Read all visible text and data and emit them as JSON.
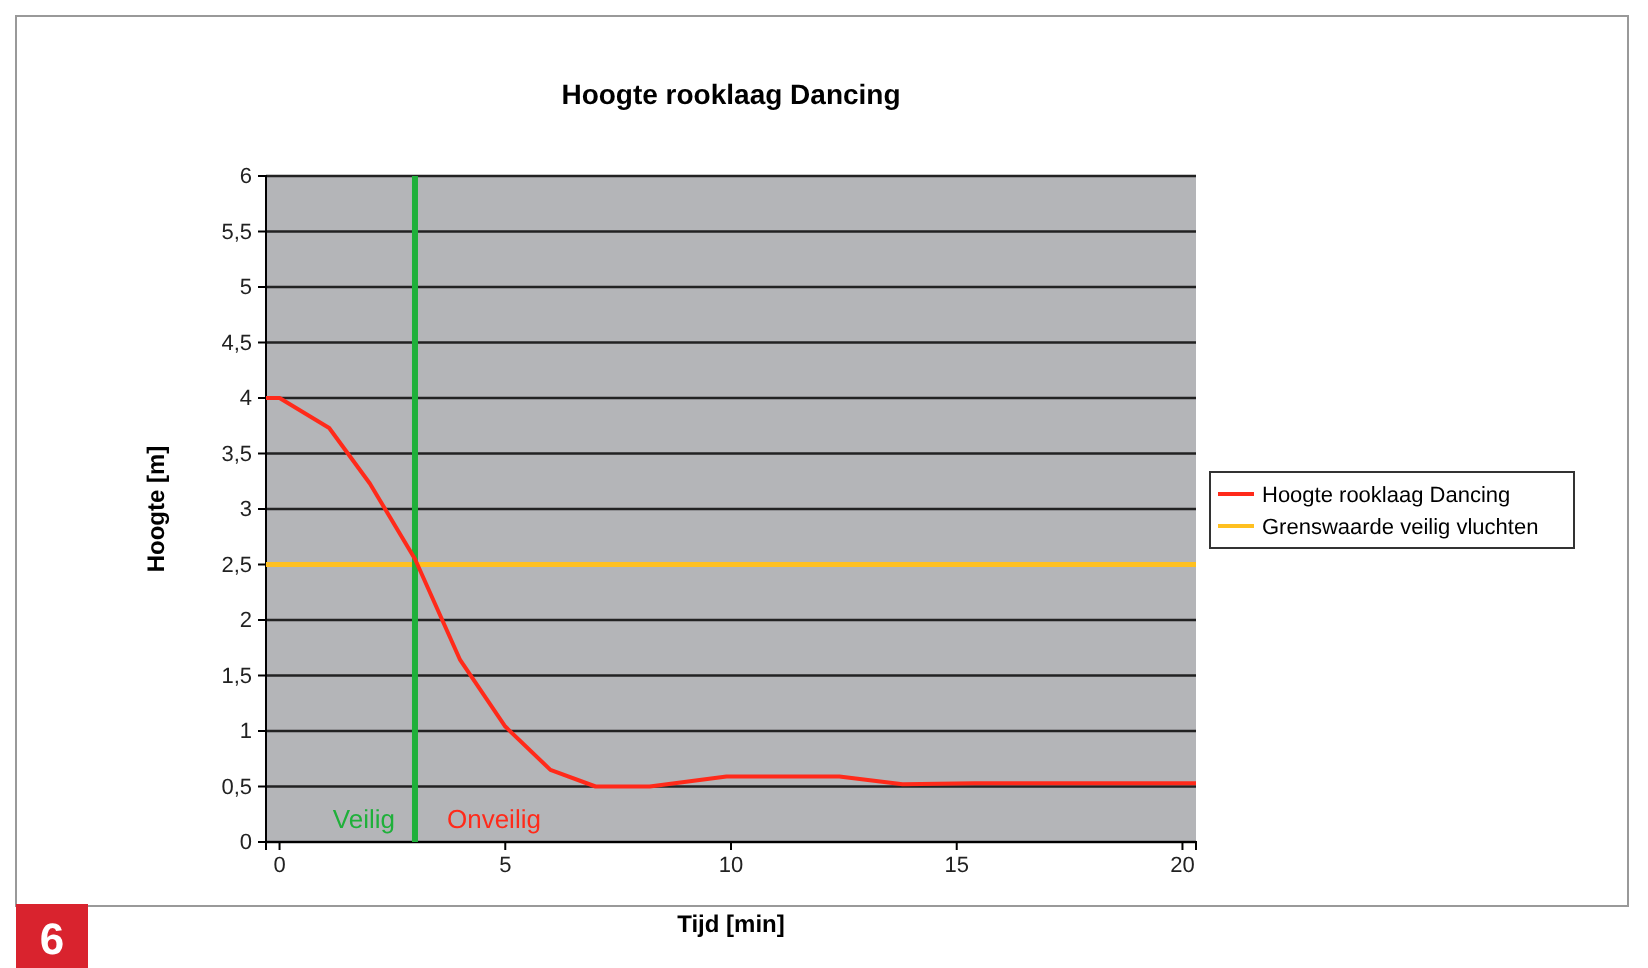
{
  "chart_data": {
    "type": "line",
    "title": "Hoogte rooklaag Dancing",
    "xlabel": "Tijd [min]",
    "ylabel": "Hoogte [m]",
    "series": [
      {
        "name": "Hoogte rooklaag Dancing",
        "color": "#ff2a1a",
        "x": [
          -0.3,
          0,
          1.1,
          2.0,
          3.0,
          4.0,
          5.0,
          6.0,
          7.0,
          8.2,
          9.9,
          12.4,
          13.8,
          15.4,
          20.3
        ],
        "values": [
          4.0,
          4.0,
          3.73,
          3.23,
          2.55,
          1.64,
          1.04,
          0.65,
          0.5,
          0.5,
          0.59,
          0.59,
          0.52,
          0.53,
          0.53
        ]
      }
    ],
    "ref_lines": [
      {
        "axis": "y",
        "value": 2.5,
        "label": "Grenswaarde veilig vluchten",
        "color": "#ffc020"
      },
      {
        "axis": "x",
        "value": 3,
        "color": "#1fb03a"
      }
    ],
    "annotations": [
      "Veilig",
      "Onveilig",
      "6"
    ],
    "xlim": [
      -0.3,
      20.3
    ],
    "ylim": [
      0,
      6
    ],
    "xticks": [
      0,
      5,
      10,
      15,
      20
    ],
    "yticks": [
      0,
      {
        "value": 0.5,
        "label": "0,5"
      },
      1,
      {
        "value": 1.5,
        "label": "1,5"
      },
      2,
      {
        "value": 2.5,
        "label": "2,5"
      },
      3,
      {
        "value": 3.5,
        "label": "3,5"
      },
      4,
      {
        "value": 4.5,
        "label": "4,5"
      },
      5,
      {
        "value": 5.5,
        "label": "5,5"
      },
      6
    ],
    "grid": "y",
    "legend": "right",
    "marker": "none",
    "line_style": "solid"
  }
}
